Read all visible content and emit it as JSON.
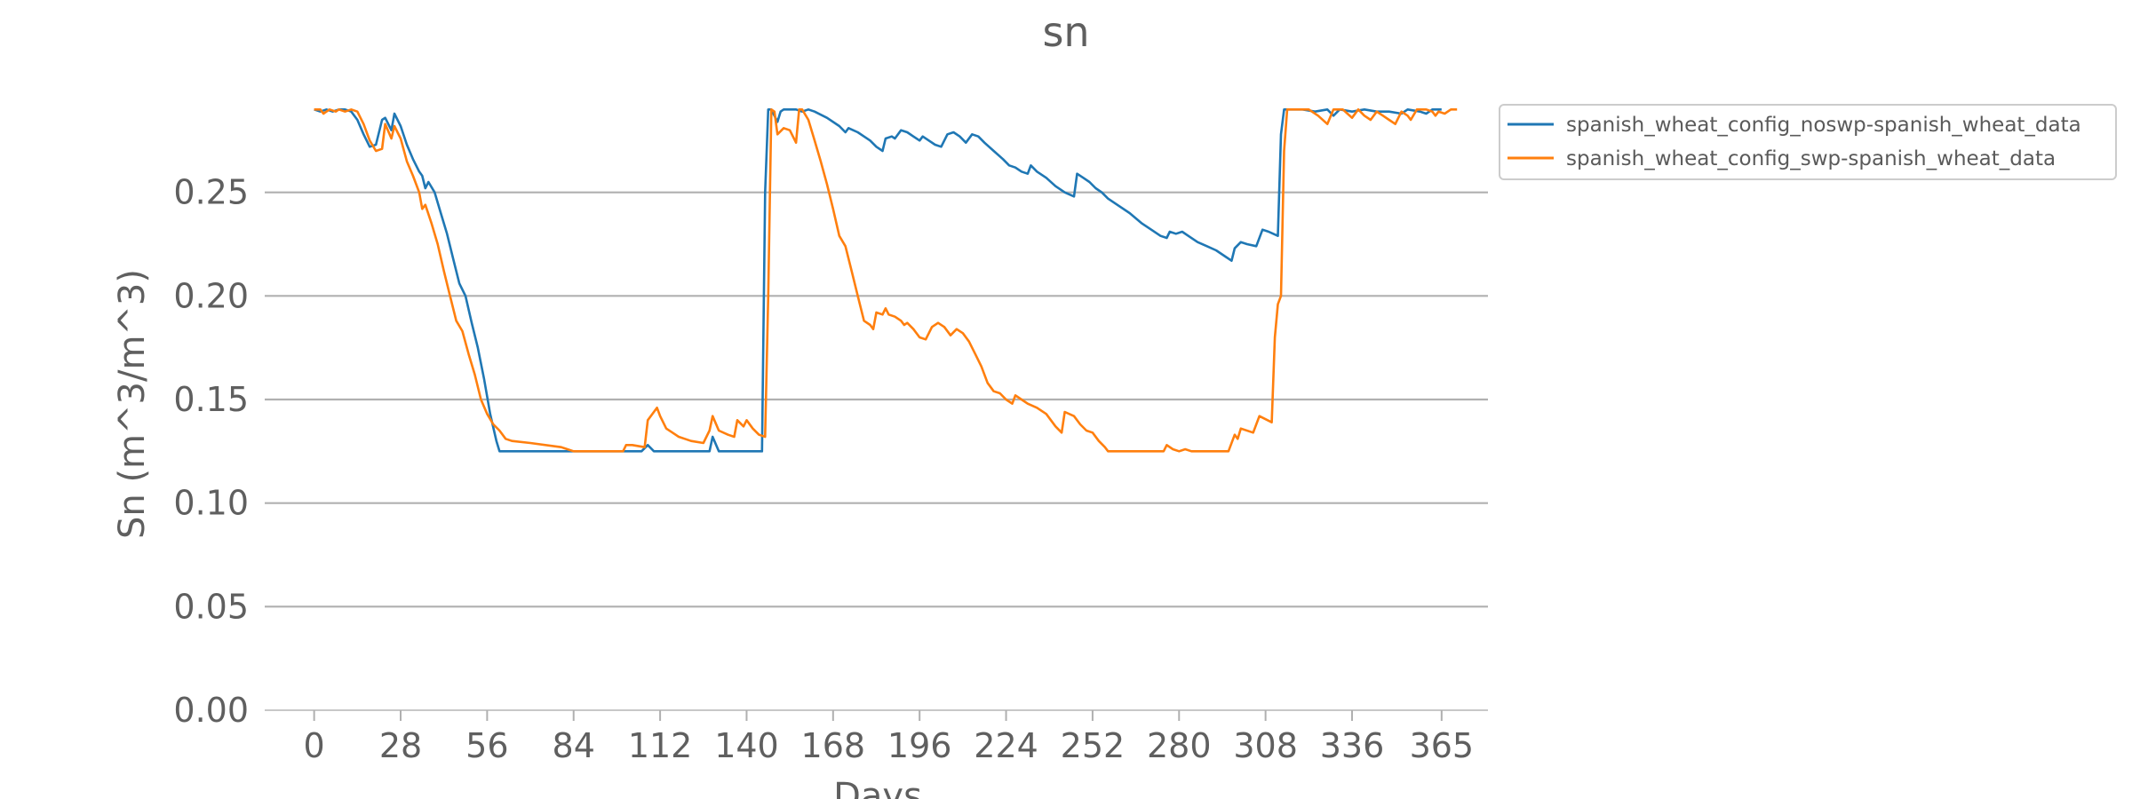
{
  "chart_data": {
    "type": "line",
    "title": "sn",
    "xlabel": "Days",
    "ylabel": "Sn (m^3/m^3)",
    "xlim": [
      -16,
      380
    ],
    "ylim": [
      0.0,
      0.3
    ],
    "x_ticks": [
      0,
      28,
      56,
      84,
      112,
      140,
      168,
      196,
      224,
      252,
      280,
      308,
      336,
      365
    ],
    "y_ticks": [
      0.0,
      0.05,
      0.1,
      0.15,
      0.2,
      0.25
    ],
    "y_tick_labels": [
      "0.00",
      "0.05",
      "0.10",
      "0.15",
      "0.20",
      "0.25"
    ],
    "grid": "horizontal",
    "legend_position": "outside-top-right",
    "series": [
      {
        "name": "spanish_wheat_config_noswp-spanish_wheat_data",
        "color": "#1f77b4",
        "points": [
          [
            0,
            0.29
          ],
          [
            2,
            0.289
          ],
          [
            4,
            0.29
          ],
          [
            6,
            0.289
          ],
          [
            8,
            0.29
          ],
          [
            10,
            0.29
          ],
          [
            12,
            0.289
          ],
          [
            14,
            0.285
          ],
          [
            16,
            0.278
          ],
          [
            18,
            0.272
          ],
          [
            20,
            0.273
          ],
          [
            22,
            0.285
          ],
          [
            23,
            0.286
          ],
          [
            25,
            0.28
          ],
          [
            26,
            0.288
          ],
          [
            28,
            0.282
          ],
          [
            30,
            0.273
          ],
          [
            32,
            0.266
          ],
          [
            34,
            0.26
          ],
          [
            35,
            0.258
          ],
          [
            36,
            0.252
          ],
          [
            37,
            0.255
          ],
          [
            39,
            0.25
          ],
          [
            41,
            0.24
          ],
          [
            43,
            0.23
          ],
          [
            45,
            0.218
          ],
          [
            47,
            0.206
          ],
          [
            49,
            0.2
          ],
          [
            51,
            0.187
          ],
          [
            53,
            0.175
          ],
          [
            55,
            0.16
          ],
          [
            57,
            0.143
          ],
          [
            59,
            0.13
          ],
          [
            60,
            0.125
          ],
          [
            70,
            0.125
          ],
          [
            84,
            0.125
          ],
          [
            96,
            0.125
          ],
          [
            106,
            0.125
          ],
          [
            108,
            0.128
          ],
          [
            110,
            0.125
          ],
          [
            120,
            0.125
          ],
          [
            128,
            0.125
          ],
          [
            129,
            0.132
          ],
          [
            131,
            0.125
          ],
          [
            140,
            0.125
          ],
          [
            145,
            0.125
          ],
          [
            146,
            0.25
          ],
          [
            147,
            0.29
          ],
          [
            148,
            0.29
          ],
          [
            150,
            0.284
          ],
          [
            151,
            0.289
          ],
          [
            152,
            0.29
          ],
          [
            156,
            0.29
          ],
          [
            158,
            0.289
          ],
          [
            160,
            0.29
          ],
          [
            162,
            0.289
          ],
          [
            166,
            0.286
          ],
          [
            170,
            0.282
          ],
          [
            172,
            0.279
          ],
          [
            173,
            0.281
          ],
          [
            176,
            0.279
          ],
          [
            178,
            0.277
          ],
          [
            180,
            0.275
          ],
          [
            182,
            0.272
          ],
          [
            184,
            0.27
          ],
          [
            185,
            0.276
          ],
          [
            187,
            0.277
          ],
          [
            188,
            0.276
          ],
          [
            190,
            0.28
          ],
          [
            192,
            0.279
          ],
          [
            194,
            0.277
          ],
          [
            196,
            0.275
          ],
          [
            197,
            0.277
          ],
          [
            199,
            0.275
          ],
          [
            201,
            0.273
          ],
          [
            203,
            0.272
          ],
          [
            205,
            0.278
          ],
          [
            207,
            0.279
          ],
          [
            209,
            0.277
          ],
          [
            211,
            0.274
          ],
          [
            213,
            0.278
          ],
          [
            215,
            0.277
          ],
          [
            217,
            0.274
          ],
          [
            220,
            0.27
          ],
          [
            223,
            0.266
          ],
          [
            225,
            0.263
          ],
          [
            227,
            0.262
          ],
          [
            229,
            0.26
          ],
          [
            231,
            0.259
          ],
          [
            232,
            0.263
          ],
          [
            234,
            0.26
          ],
          [
            237,
            0.257
          ],
          [
            240,
            0.253
          ],
          [
            243,
            0.25
          ],
          [
            246,
            0.248
          ],
          [
            247,
            0.259
          ],
          [
            249,
            0.257
          ],
          [
            251,
            0.255
          ],
          [
            253,
            0.252
          ],
          [
            255,
            0.25
          ],
          [
            257,
            0.247
          ],
          [
            260,
            0.244
          ],
          [
            264,
            0.24
          ],
          [
            268,
            0.235
          ],
          [
            271,
            0.232
          ],
          [
            274,
            0.229
          ],
          [
            276,
            0.228
          ],
          [
            277,
            0.231
          ],
          [
            279,
            0.23
          ],
          [
            281,
            0.231
          ],
          [
            283,
            0.229
          ],
          [
            286,
            0.226
          ],
          [
            289,
            0.224
          ],
          [
            292,
            0.222
          ],
          [
            295,
            0.219
          ],
          [
            297,
            0.217
          ],
          [
            298,
            0.223
          ],
          [
            300,
            0.226
          ],
          [
            302,
            0.225
          ],
          [
            305,
            0.224
          ],
          [
            307,
            0.232
          ],
          [
            309,
            0.231
          ],
          [
            312,
            0.229
          ],
          [
            313,
            0.278
          ],
          [
            314,
            0.29
          ],
          [
            316,
            0.29
          ],
          [
            320,
            0.29
          ],
          [
            324,
            0.289
          ],
          [
            328,
            0.29
          ],
          [
            330,
            0.287
          ],
          [
            332,
            0.29
          ],
          [
            336,
            0.289
          ],
          [
            340,
            0.29
          ],
          [
            344,
            0.289
          ],
          [
            348,
            0.289
          ],
          [
            352,
            0.288
          ],
          [
            354,
            0.29
          ],
          [
            358,
            0.289
          ],
          [
            360,
            0.288
          ],
          [
            362,
            0.29
          ],
          [
            365,
            0.29
          ]
        ]
      },
      {
        "name": "spanish_wheat_config_swp-spanish_wheat_data",
        "color": "#ff7f0e",
        "points": [
          [
            0,
            0.29
          ],
          [
            2,
            0.29
          ],
          [
            3,
            0.288
          ],
          [
            5,
            0.29
          ],
          [
            7,
            0.289
          ],
          [
            8,
            0.29
          ],
          [
            10,
            0.289
          ],
          [
            12,
            0.29
          ],
          [
            14,
            0.289
          ],
          [
            16,
            0.283
          ],
          [
            18,
            0.275
          ],
          [
            20,
            0.27
          ],
          [
            22,
            0.271
          ],
          [
            23,
            0.283
          ],
          [
            25,
            0.276
          ],
          [
            26,
            0.282
          ],
          [
            28,
            0.276
          ],
          [
            30,
            0.265
          ],
          [
            32,
            0.258
          ],
          [
            34,
            0.25
          ],
          [
            35,
            0.242
          ],
          [
            36,
            0.244
          ],
          [
            38,
            0.235
          ],
          [
            40,
            0.225
          ],
          [
            42,
            0.212
          ],
          [
            44,
            0.2
          ],
          [
            46,
            0.188
          ],
          [
            48,
            0.183
          ],
          [
            50,
            0.172
          ],
          [
            52,
            0.162
          ],
          [
            54,
            0.15
          ],
          [
            56,
            0.143
          ],
          [
            58,
            0.138
          ],
          [
            60,
            0.135
          ],
          [
            62,
            0.131
          ],
          [
            64,
            0.13
          ],
          [
            70,
            0.129
          ],
          [
            80,
            0.127
          ],
          [
            84,
            0.125
          ],
          [
            96,
            0.125
          ],
          [
            100,
            0.125
          ],
          [
            101,
            0.128
          ],
          [
            103,
            0.128
          ],
          [
            107,
            0.127
          ],
          [
            108,
            0.14
          ],
          [
            110,
            0.144
          ],
          [
            111,
            0.146
          ],
          [
            112,
            0.142
          ],
          [
            114,
            0.136
          ],
          [
            116,
            0.134
          ],
          [
            118,
            0.132
          ],
          [
            120,
            0.131
          ],
          [
            122,
            0.13
          ],
          [
            126,
            0.129
          ],
          [
            128,
            0.135
          ],
          [
            129,
            0.142
          ],
          [
            131,
            0.135
          ],
          [
            134,
            0.133
          ],
          [
            136,
            0.132
          ],
          [
            137,
            0.14
          ],
          [
            139,
            0.137
          ],
          [
            140,
            0.14
          ],
          [
            142,
            0.136
          ],
          [
            144,
            0.133
          ],
          [
            146,
            0.132
          ],
          [
            147,
            0.2
          ],
          [
            148,
            0.29
          ],
          [
            149,
            0.289
          ],
          [
            150,
            0.278
          ],
          [
            152,
            0.281
          ],
          [
            154,
            0.28
          ],
          [
            156,
            0.274
          ],
          [
            157,
            0.29
          ],
          [
            158,
            0.29
          ],
          [
            160,
            0.285
          ],
          [
            162,
            0.275
          ],
          [
            164,
            0.265
          ],
          [
            166,
            0.254
          ],
          [
            168,
            0.242
          ],
          [
            170,
            0.229
          ],
          [
            172,
            0.224
          ],
          [
            174,
            0.212
          ],
          [
            176,
            0.2
          ],
          [
            178,
            0.188
          ],
          [
            180,
            0.186
          ],
          [
            181,
            0.184
          ],
          [
            182,
            0.192
          ],
          [
            184,
            0.191
          ],
          [
            185,
            0.194
          ],
          [
            186,
            0.191
          ],
          [
            188,
            0.19
          ],
          [
            190,
            0.188
          ],
          [
            191,
            0.186
          ],
          [
            192,
            0.187
          ],
          [
            194,
            0.184
          ],
          [
            196,
            0.18
          ],
          [
            198,
            0.179
          ],
          [
            200,
            0.185
          ],
          [
            202,
            0.187
          ],
          [
            204,
            0.185
          ],
          [
            206,
            0.181
          ],
          [
            208,
            0.184
          ],
          [
            210,
            0.182
          ],
          [
            212,
            0.178
          ],
          [
            214,
            0.172
          ],
          [
            216,
            0.166
          ],
          [
            218,
            0.158
          ],
          [
            220,
            0.154
          ],
          [
            222,
            0.153
          ],
          [
            224,
            0.15
          ],
          [
            226,
            0.148
          ],
          [
            227,
            0.152
          ],
          [
            229,
            0.15
          ],
          [
            231,
            0.148
          ],
          [
            234,
            0.146
          ],
          [
            237,
            0.143
          ],
          [
            240,
            0.137
          ],
          [
            242,
            0.134
          ],
          [
            243,
            0.144
          ],
          [
            246,
            0.142
          ],
          [
            248,
            0.138
          ],
          [
            250,
            0.135
          ],
          [
            252,
            0.134
          ],
          [
            254,
            0.13
          ],
          [
            256,
            0.127
          ],
          [
            257,
            0.125
          ],
          [
            262,
            0.125
          ],
          [
            270,
            0.125
          ],
          [
            275,
            0.125
          ],
          [
            276,
            0.128
          ],
          [
            278,
            0.126
          ],
          [
            280,
            0.125
          ],
          [
            282,
            0.126
          ],
          [
            284,
            0.125
          ],
          [
            290,
            0.125
          ],
          [
            296,
            0.125
          ],
          [
            298,
            0.133
          ],
          [
            299,
            0.131
          ],
          [
            300,
            0.136
          ],
          [
            304,
            0.134
          ],
          [
            306,
            0.142
          ],
          [
            310,
            0.139
          ],
          [
            311,
            0.18
          ],
          [
            312,
            0.196
          ],
          [
            313,
            0.2
          ],
          [
            314,
            0.27
          ],
          [
            315,
            0.29
          ],
          [
            318,
            0.29
          ],
          [
            322,
            0.29
          ],
          [
            325,
            0.287
          ],
          [
            328,
            0.283
          ],
          [
            330,
            0.29
          ],
          [
            333,
            0.29
          ],
          [
            336,
            0.286
          ],
          [
            338,
            0.29
          ],
          [
            340,
            0.287
          ],
          [
            342,
            0.285
          ],
          [
            344,
            0.289
          ],
          [
            346,
            0.287
          ],
          [
            348,
            0.285
          ],
          [
            350,
            0.283
          ],
          [
            352,
            0.289
          ],
          [
            354,
            0.287
          ],
          [
            355,
            0.285
          ],
          [
            357,
            0.29
          ],
          [
            360,
            0.29
          ],
          [
            362,
            0.289
          ],
          [
            363,
            0.287
          ],
          [
            364,
            0.289
          ],
          [
            366,
            0.288
          ],
          [
            368,
            0.29
          ],
          [
            370,
            0.29
          ]
        ]
      }
    ]
  }
}
